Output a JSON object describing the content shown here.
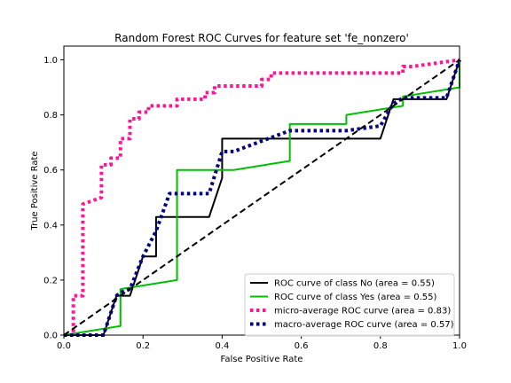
{
  "chart_data": {
    "type": "line",
    "title": "Random Forest ROC Curves for feature set 'fe_nonzero'",
    "xlabel": "False Positive Rate",
    "ylabel": "True Positive Rate",
    "xlim": [
      0.0,
      1.0
    ],
    "ylim": [
      0.0,
      1.05
    ],
    "xticks": [
      "0.0",
      "0.2",
      "0.4",
      "0.6",
      "0.8",
      "1.0"
    ],
    "yticks": [
      "0.0",
      "0.2",
      "0.4",
      "0.6",
      "0.8",
      "1.0"
    ],
    "grid": false,
    "legend_position": "lower-right",
    "series": [
      {
        "name": "ROC curve of class No (area = 0.55)",
        "color": "#000000",
        "style": "solid",
        "x": [
          0.0,
          0.1,
          0.1,
          0.133,
          0.133,
          0.167,
          0.167,
          0.2,
          0.2,
          0.233,
          0.233,
          0.367,
          0.367,
          0.4,
          0.4,
          0.8,
          0.8,
          0.833,
          0.833,
          0.967,
          0.967,
          1.0
        ],
        "y": [
          0.0,
          0.0,
          0.0,
          0.143,
          0.143,
          0.143,
          0.143,
          0.286,
          0.286,
          0.286,
          0.429,
          0.429,
          0.429,
          0.571,
          0.714,
          0.714,
          0.714,
          0.857,
          0.857,
          0.857,
          0.857,
          1.0
        ]
      },
      {
        "name": "ROC curve of class Yes (area = 0.55)",
        "color": "#00bf00",
        "style": "solid",
        "x": [
          0.0,
          0.143,
          0.143,
          0.286,
          0.286,
          0.429,
          0.571,
          0.571,
          0.714,
          0.714,
          0.857,
          0.857,
          1.0,
          1.0
        ],
        "y": [
          0.0,
          0.033,
          0.167,
          0.2,
          0.6,
          0.6,
          0.633,
          0.767,
          0.767,
          0.8,
          0.833,
          0.867,
          0.9,
          1.0
        ]
      },
      {
        "name": "micro-average ROC curve (area = 0.83)",
        "color": "#ff1493",
        "style": "dotted",
        "x": [
          0.0,
          0.024,
          0.024,
          0.048,
          0.048,
          0.095,
          0.095,
          0.119,
          0.119,
          0.143,
          0.143,
          0.167,
          0.167,
          0.19,
          0.19,
          0.214,
          0.214,
          0.286,
          0.286,
          0.357,
          0.357,
          0.381,
          0.381,
          0.5,
          0.5,
          0.524,
          0.524,
          0.857,
          0.857,
          0.881,
          0.881,
          1.0
        ],
        "y": [
          0.0,
          0.0,
          0.143,
          0.143,
          0.476,
          0.5,
          0.619,
          0.619,
          0.643,
          0.643,
          0.714,
          0.714,
          0.786,
          0.786,
          0.81,
          0.81,
          0.833,
          0.833,
          0.857,
          0.857,
          0.881,
          0.881,
          0.905,
          0.905,
          0.929,
          0.929,
          0.952,
          0.952,
          0.976,
          0.976,
          0.976,
          1.0
        ]
      },
      {
        "name": "macro-average ROC curve (area = 0.57)",
        "color": "#000080",
        "style": "dotted",
        "x": [
          0.0,
          0.1,
          0.133,
          0.143,
          0.167,
          0.2,
          0.233,
          0.267,
          0.286,
          0.367,
          0.4,
          0.429,
          0.571,
          0.714,
          0.8,
          0.833,
          0.857,
          0.967,
          1.0
        ],
        "y": [
          0.0,
          0.0,
          0.143,
          0.155,
          0.167,
          0.286,
          0.378,
          0.514,
          0.514,
          0.514,
          0.667,
          0.667,
          0.743,
          0.743,
          0.76,
          0.842,
          0.862,
          0.862,
          1.0
        ]
      },
      {
        "name": "",
        "color": "#000000",
        "style": "dashed",
        "x": [
          0.0,
          1.0
        ],
        "y": [
          0.0,
          1.0
        ]
      }
    ]
  }
}
